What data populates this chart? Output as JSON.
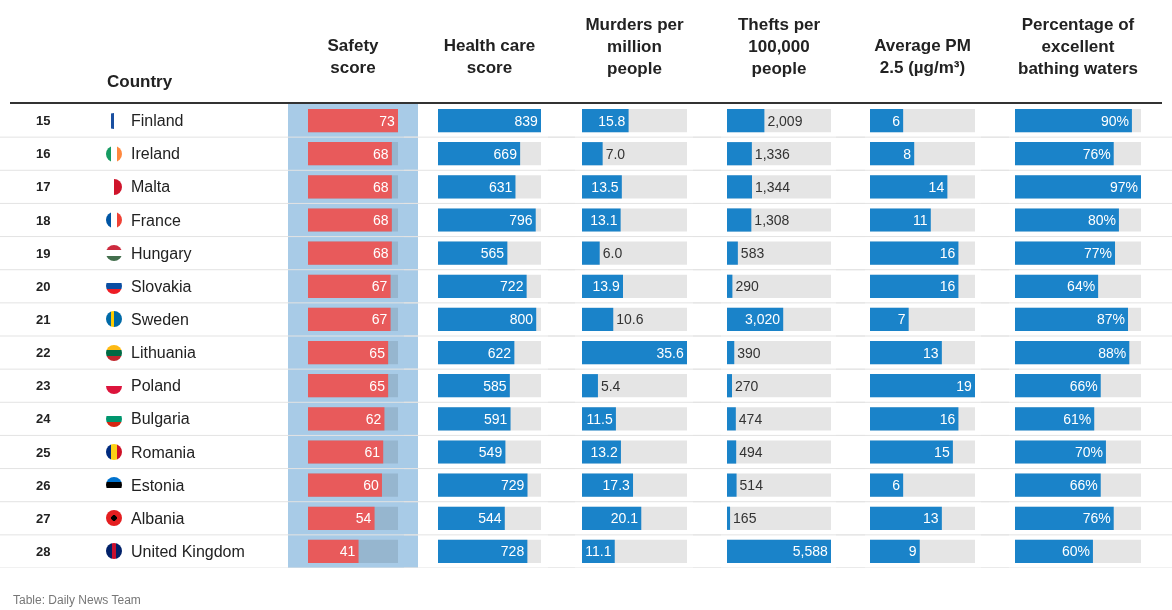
{
  "chart_data": [
    {
      "type": "bar",
      "orientation": "horizontal",
      "title": "Safety\nscore",
      "ylabel": "Country",
      "tick_labels": "y",
      "color": "#e85a5b",
      "xlim": [
        0,
        73
      ],
      "categories": [
        "Finland",
        "Ireland",
        "Malta",
        "France",
        "Hungary",
        "Slovakia",
        "Sweden",
        "Lithuania",
        "Poland",
        "Bulgaria",
        "Romania",
        "Estonia",
        "Albania",
        "United Kingdom"
      ],
      "values": [
        73,
        68,
        68,
        68,
        68,
        67,
        67,
        65,
        65,
        62,
        61,
        60,
        54,
        41
      ],
      "value_labels": [
        "73",
        "68",
        "68",
        "68",
        "68",
        "67",
        "67",
        "65",
        "65",
        "62",
        "61",
        "60",
        "54",
        "41"
      ],
      "annotations": [
        "15",
        "16",
        "17",
        "18",
        "19",
        "20",
        "21",
        "22",
        "23",
        "24",
        "25",
        "26",
        "27",
        "28",
        "Table: Daily News Team"
      ]
    },
    {
      "type": "bar",
      "orientation": "horizontal",
      "title": "Health care\nscore",
      "tick_labels": false,
      "color": "#1a83c9",
      "xlim": [
        0,
        839
      ],
      "categories": [
        "Finland",
        "Ireland",
        "Malta",
        "France",
        "Hungary",
        "Slovakia",
        "Sweden",
        "Lithuania",
        "Poland",
        "Bulgaria",
        "Romania",
        "Estonia",
        "Albania",
        "United Kingdom"
      ],
      "values": [
        839,
        669,
        631,
        796,
        565,
        722,
        800,
        622,
        585,
        591,
        549,
        729,
        544,
        728
      ],
      "value_labels": [
        "839",
        "669",
        "631",
        "796",
        "565",
        "722",
        "800",
        "622",
        "585",
        "591",
        "549",
        "729",
        "544",
        "728"
      ]
    },
    {
      "type": "bar",
      "orientation": "horizontal",
      "title": "Murders per\nmillion\npeople",
      "tick_labels": false,
      "color": "#1a83c9",
      "xlim": [
        0,
        35.6
      ],
      "categories": [
        "Finland",
        "Ireland",
        "Malta",
        "France",
        "Hungary",
        "Slovakia",
        "Sweden",
        "Lithuania",
        "Poland",
        "Bulgaria",
        "Romania",
        "Estonia",
        "Albania",
        "United Kingdom"
      ],
      "values": [
        15.8,
        7.0,
        13.5,
        13.1,
        6.0,
        13.9,
        10.6,
        35.6,
        5.4,
        11.5,
        13.2,
        17.3,
        20.1,
        11.1
      ],
      "value_labels": [
        "15.8",
        "7.0",
        "13.5",
        "13.1",
        "6.0",
        "13.9",
        "10.6",
        "35.6",
        "5.4",
        "11.5",
        "13.2",
        "17.3",
        "20.1",
        "11.1"
      ]
    },
    {
      "type": "bar",
      "orientation": "horizontal",
      "title": "Thefts per\n100,000\npeople",
      "tick_labels": false,
      "color": "#1a83c9",
      "xlim": [
        0,
        5588
      ],
      "categories": [
        "Finland",
        "Ireland",
        "Malta",
        "France",
        "Hungary",
        "Slovakia",
        "Sweden",
        "Lithuania",
        "Poland",
        "Bulgaria",
        "Romania",
        "Estonia",
        "Albania",
        "United Kingdom"
      ],
      "values": [
        2009,
        1336,
        1344,
        1308,
        583,
        290,
        3020,
        390,
        270,
        474,
        494,
        514,
        165,
        5588
      ],
      "value_labels": [
        "2,009",
        "1,336",
        "1,344",
        "1,308",
        "583",
        "290",
        "3,020",
        "390",
        "270",
        "474",
        "494",
        "514",
        "165",
        "5,588"
      ]
    },
    {
      "type": "bar",
      "orientation": "horizontal",
      "title": "Average PM\n2.5 (µg/m³)",
      "tick_labels": false,
      "color": "#1a83c9",
      "xlim": [
        0,
        19
      ],
      "categories": [
        "Finland",
        "Ireland",
        "Malta",
        "France",
        "Hungary",
        "Slovakia",
        "Sweden",
        "Lithuania",
        "Poland",
        "Bulgaria",
        "Romania",
        "Estonia",
        "Albania",
        "United Kingdom"
      ],
      "values": [
        6,
        8,
        14,
        11,
        16,
        16,
        7,
        13,
        19,
        16,
        15,
        6,
        13,
        9
      ],
      "value_labels": [
        "6",
        "8",
        "14",
        "11",
        "16",
        "16",
        "7",
        "13",
        "19",
        "16",
        "15",
        "6",
        "13",
        "9"
      ]
    },
    {
      "type": "bar",
      "orientation": "horizontal",
      "title": "Percentage of\nexcellent\nbathing waters",
      "tick_labels": false,
      "color": "#1a83c9",
      "xlim": [
        0,
        97
      ],
      "categories": [
        "Finland",
        "Ireland",
        "Malta",
        "France",
        "Hungary",
        "Slovakia",
        "Sweden",
        "Lithuania",
        "Poland",
        "Bulgaria",
        "Romania",
        "Estonia",
        "Albania",
        "United Kingdom"
      ],
      "values": [
        90,
        76,
        97,
        80,
        77,
        64,
        87,
        88,
        66,
        61,
        70,
        66,
        76,
        60
      ],
      "value_labels": [
        "90%",
        "76%",
        "97%",
        "80%",
        "77%",
        "64%",
        "87%",
        "88%",
        "66%",
        "61%",
        "70%",
        "66%",
        "76%",
        "60%"
      ]
    }
  ]
}
